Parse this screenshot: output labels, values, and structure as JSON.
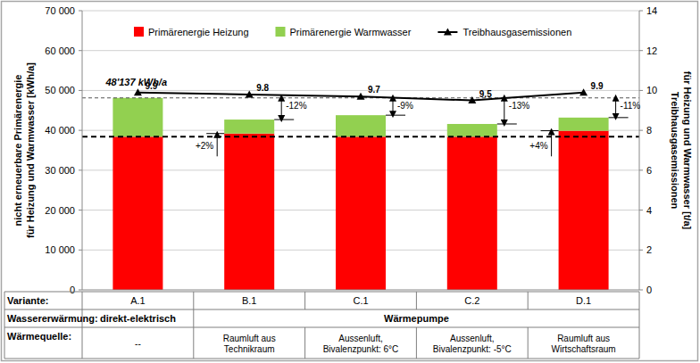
{
  "chart_data": {
    "type": "bar",
    "stacked": true,
    "grid": true,
    "legend": "top",
    "ylabel": [
      "nicht erneuerbare Primärenergie",
      "für Heizung und Warmwasser [kWh/a]"
    ],
    "y2label": [
      "Treibhausgasemissionen",
      "für Heizung und Warmwasser [t/a]"
    ],
    "xlabel": "Variante:",
    "categories": [
      "A.1",
      "B.1",
      "C.1",
      "C.2",
      "D.1"
    ],
    "ylim": [
      0,
      70000
    ],
    "yticks": [
      0,
      {
        "value": 10000,
        "label": "10 000"
      },
      {
        "value": 20000,
        "label": "20 000"
      },
      {
        "value": 30000,
        "label": "30 000"
      },
      {
        "value": 40000,
        "label": "40 000"
      },
      {
        "value": 50000,
        "label": "50 000"
      },
      {
        "value": 60000,
        "label": "60 000"
      },
      {
        "value": 70000,
        "label": "70 000"
      }
    ],
    "y2lim": [
      0,
      14
    ],
    "y2ticks": [
      0,
      2,
      4,
      6,
      8,
      10,
      12,
      14
    ],
    "series": [
      {
        "name": "Primärenergie Heizung",
        "color": "#ff0000",
        "values": [
          38400,
          39200,
          38400,
          38400,
          39900
        ]
      },
      {
        "name": "Primärenergie Warmwasser",
        "color": "#92d050",
        "values": [
          9737,
          3500,
          5400,
          3200,
          3300
        ]
      },
      {
        "name": "Treibhausgasemissionen",
        "type": "line",
        "axis": "y2",
        "color": "#000000",
        "marker": "triangle",
        "data_labels": true,
        "values": [
          9.9,
          9.8,
          9.7,
          9.5,
          9.9
        ]
      }
    ],
    "annotations": [
      {
        "text": "48'137 kWh/a",
        "category": 0
      },
      {
        "text": "+2%",
        "category": 1,
        "series": 0
      },
      {
        "text": "-12%",
        "category": 1,
        "series": 1
      },
      {
        "text": "-9%",
        "category": 2,
        "series": 1
      },
      {
        "text": "-13%",
        "category": 3,
        "series": 1
      },
      {
        "text": "+4%",
        "category": 4,
        "series": 0
      },
      {
        "text": "-11%",
        "category": 4,
        "series": 1
      }
    ]
  },
  "table": {
    "rows": [
      {
        "label": "Wassererwärmung:",
        "cells": [
          {
            "text": [
              "direkt-elektrisch"
            ],
            "span": 1
          },
          {
            "text": [
              "Wärmepumpe"
            ],
            "span": 4
          }
        ]
      },
      {
        "label": "Wärmequelle:",
        "cells": [
          {
            "text": [
              "--"
            ],
            "span": 1
          },
          {
            "text": [
              "Raumluft aus",
              "Technikraum"
            ],
            "span": 1
          },
          {
            "text": [
              "Aussenluft,",
              "Bivalenzpunkt: 6°C"
            ],
            "span": 1
          },
          {
            "text": [
              "Aussenluft,",
              "Bivalenzpunkt: -5°C"
            ],
            "span": 1
          },
          {
            "text": [
              "Raumluft aus",
              "Wirtschaftsraum"
            ],
            "span": 1
          }
        ]
      }
    ]
  }
}
